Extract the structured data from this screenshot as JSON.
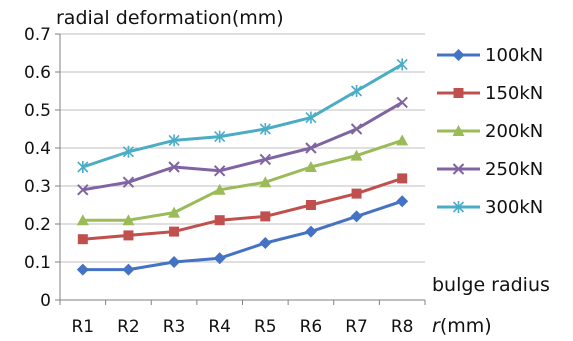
{
  "chart_data": {
    "type": "line",
    "ylabel": "radial deformation(mm)",
    "xlabel_main": "bulge radius",
    "xlabel_symbol": "r",
    "xlabel_unit": "(mm)",
    "categories": [
      "R1",
      "R2",
      "R3",
      "R4",
      "R5",
      "R6",
      "R7",
      "R8"
    ],
    "ylim": [
      0,
      0.7
    ],
    "yticks": [
      "0",
      "0.1",
      "0.2",
      "0.3",
      "0.4",
      "0.5",
      "0.6",
      "0.7"
    ],
    "grid": "horizontal",
    "legend_position": "right",
    "series": [
      {
        "name": "100kN",
        "color": "#4472C4",
        "marker": "diamond",
        "values": [
          0.08,
          0.08,
          0.1,
          0.11,
          0.15,
          0.18,
          0.22,
          0.26
        ]
      },
      {
        "name": "150kN",
        "color": "#C0504D",
        "marker": "square",
        "values": [
          0.16,
          0.17,
          0.18,
          0.21,
          0.22,
          0.25,
          0.28,
          0.32
        ]
      },
      {
        "name": "200kN",
        "color": "#9BBB59",
        "marker": "triangle",
        "values": [
          0.21,
          0.21,
          0.23,
          0.29,
          0.31,
          0.35,
          0.38,
          0.42
        ]
      },
      {
        "name": "250kN",
        "color": "#8064A2",
        "marker": "x",
        "values": [
          0.29,
          0.31,
          0.35,
          0.34,
          0.37,
          0.4,
          0.45,
          0.52
        ]
      },
      {
        "name": "300kN",
        "color": "#4BACC6",
        "marker": "star",
        "values": [
          0.35,
          0.39,
          0.42,
          0.43,
          0.45,
          0.48,
          0.55,
          0.62
        ]
      }
    ]
  }
}
